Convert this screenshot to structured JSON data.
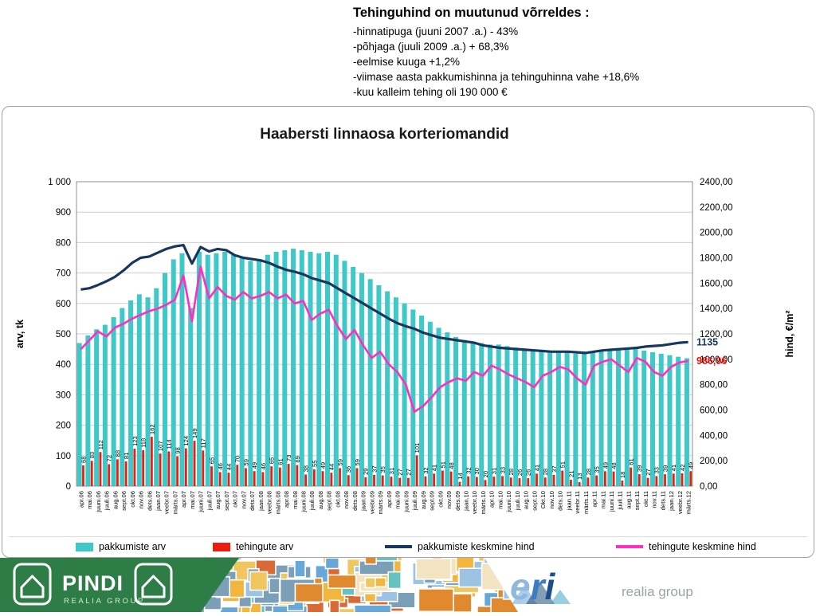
{
  "annotation": {
    "title": "Tehinguhind on muutunud võrreldes :",
    "lines": [
      "-hinnatipuga (juuni 2007 .a.) - 43%",
      "-põhjaga (juuli 2009 .a.) + 68,3%",
      "-eelmise kuuga +1,2%",
      "-viimase aasta pakkumishinna ja tehinguhinna vahe +18,6%",
      "-kuu kalleim tehing oli 190 000 €"
    ]
  },
  "chart_data": {
    "type": "bar",
    "title": "Haabersti linnaosa korteriomandid",
    "legend_position": "bottom",
    "grid": true,
    "y_left": {
      "label": "arv, tk",
      "min": 0,
      "max": 1000,
      "step": 100,
      "tick_labels": [
        "0",
        "100",
        "200",
        "300",
        "400",
        "500",
        "600",
        "700",
        "800",
        "900",
        "1 000"
      ]
    },
    "y_right": {
      "label": "hind, €/m²",
      "min": 0,
      "max": 2400,
      "step": 200,
      "tick_labels": [
        "0,00",
        "200,00",
        "400,00",
        "600,00",
        "800,00",
        "1000,00",
        "1200,00",
        "1400,00",
        "1600,00",
        "1800,00",
        "2000,00",
        "2200,00",
        "2400,00"
      ]
    },
    "categories": [
      "apr.06",
      "mai.06",
      "juuni.06",
      "juuli.06",
      "aug.06",
      "sept.06",
      "okt.06",
      "nov.06",
      "dets.06",
      "jaan.07",
      "veebr.07",
      "märts.07",
      "apr.07",
      "mai.07",
      "juuni.07",
      "juuli.07",
      "aug.07",
      "sept.07",
      "okt.07",
      "nov.07",
      "dets.07",
      "jaan.08",
      "veebr.08",
      "märts.08",
      "apr.08",
      "mai.08",
      "juuni.08",
      "juuli.08",
      "aug.08",
      "sept.08",
      "okt.08",
      "nov.08",
      "dets.08",
      "jaan.09",
      "veebr.09",
      "märts.09",
      "apr.09",
      "mai.09",
      "juuni.09",
      "juuli.09",
      "aug.09",
      "sept.09",
      "okt.09",
      "nov.09",
      "dets.09",
      "jaan.10",
      "veebr.10",
      "märts.10",
      "apr.10",
      "mai.10",
      "juuni.10",
      "juuli.10",
      "aug.10",
      "sept.10",
      "Okt.10",
      "nov.10",
      "dets.10",
      "jaan.11",
      "veebr.11",
      "märts.11",
      "apr.11",
      "mai.11",
      "juuni.11",
      "juuli.11",
      "aug.11",
      "sept.11",
      "okt.11",
      "nov.11",
      "dets.11",
      "jaan.12",
      "veebr.12",
      "märts.12"
    ],
    "series": [
      {
        "id": "pakkumiste-arv",
        "name": "pakkumiste arv",
        "kind": "bar",
        "axis": "left",
        "color": "#3FC8C8",
        "values": [
          470,
          495,
          515,
          530,
          555,
          585,
          610,
          630,
          620,
          650,
          700,
          745,
          765,
          585,
          770,
          760,
          765,
          770,
          760,
          750,
          740,
          745,
          760,
          770,
          775,
          780,
          775,
          770,
          765,
          770,
          760,
          740,
          720,
          700,
          680,
          660,
          640,
          620,
          600,
          580,
          560,
          540,
          520,
          505,
          490,
          480,
          475,
          470,
          465,
          465,
          460,
          455,
          450,
          450,
          445,
          445,
          440,
          440,
          435,
          435,
          440,
          445,
          450,
          450,
          455,
          450,
          445,
          440,
          435,
          430,
          425,
          420
        ]
      },
      {
        "id": "tehingute-arv",
        "name": "tehingute arv",
        "kind": "bar",
        "axis": "left",
        "color": "#EE1C0E",
        "data_labels": true,
        "values": [
          68,
          83,
          112,
          72,
          88,
          81,
          123,
          118,
          162,
          107,
          114,
          98,
          124,
          149,
          117,
          65,
          46,
          44,
          70,
          59,
          49,
          46,
          65,
          61,
          73,
          69,
          38,
          55,
          49,
          44,
          59,
          36,
          59,
          29,
          37,
          35,
          31,
          27,
          27,
          101,
          32,
          41,
          51,
          48,
          14,
          32,
          30,
          20,
          31,
          33,
          28,
          26,
          26,
          41,
          28,
          37,
          51,
          21,
          13,
          28,
          35,
          49,
          48,
          18,
          61,
          39,
          27,
          33,
          39,
          41,
          42,
          49
        ]
      },
      {
        "id": "pakkumiste-keskmine-hind",
        "name": "pakkumiste keskmine hind",
        "kind": "line",
        "axis": "right",
        "color": "#17375E",
        "width": 3.2,
        "end_label": "1135",
        "end_label_color": "#17375E",
        "values": [
          1550,
          1560,
          1585,
          1615,
          1650,
          1700,
          1760,
          1800,
          1810,
          1840,
          1870,
          1890,
          1900,
          1755,
          1885,
          1850,
          1870,
          1860,
          1820,
          1800,
          1790,
          1780,
          1760,
          1730,
          1705,
          1690,
          1670,
          1640,
          1620,
          1600,
          1560,
          1520,
          1480,
          1440,
          1400,
          1360,
          1320,
          1285,
          1260,
          1240,
          1210,
          1190,
          1170,
          1160,
          1150,
          1140,
          1130,
          1110,
          1100,
          1090,
          1085,
          1080,
          1075,
          1070,
          1065,
          1060,
          1060,
          1060,
          1055,
          1050,
          1060,
          1070,
          1075,
          1080,
          1085,
          1090,
          1100,
          1105,
          1110,
          1120,
          1130,
          1135
        ]
      },
      {
        "id": "tehingute-keskmine-hind",
        "name": "tehingute keskmine hind",
        "kind": "line",
        "axis": "right",
        "color": "#FF2EC0",
        "width": 2.6,
        "end_label": "986,96",
        "end_label_color": "#E8140C",
        "values": [
          1080,
          1150,
          1220,
          1180,
          1250,
          1280,
          1320,
          1350,
          1380,
          1400,
          1430,
          1470,
          1660,
          1300,
          1731,
          1480,
          1570,
          1500,
          1470,
          1530,
          1480,
          1500,
          1530,
          1480,
          1510,
          1440,
          1460,
          1310,
          1360,
          1390,
          1260,
          1160,
          1230,
          1110,
          1010,
          1060,
          960,
          900,
          800,
          586,
          630,
          700,
          780,
          820,
          850,
          830,
          900,
          870,
          950,
          920,
          880,
          850,
          820,
          780,
          870,
          900,
          940,
          920,
          850,
          800,
          950,
          980,
          1000,
          950,
          900,
          1010,
          980,
          900,
          870,
          940,
          975,
          986.96
        ]
      }
    ]
  },
  "footer": {
    "green": "#2E7D46",
    "map_palette": [
      "#E0892F",
      "#D96A35",
      "#EFC75E",
      "#F2B63F",
      "#68A8D8",
      "#9CC3E4",
      "#66C2BE",
      "#F4E3C0",
      "#7C9FB8"
    ],
    "pindi": {
      "name": "PINDI",
      "sub": "REALIA GROUP"
    },
    "eri": {
      "name": "eri",
      "letter_colors": [
        "#8FB8DF",
        "#3D7CC0",
        "#1E4F8C"
      ],
      "sub": "realia group"
    }
  }
}
